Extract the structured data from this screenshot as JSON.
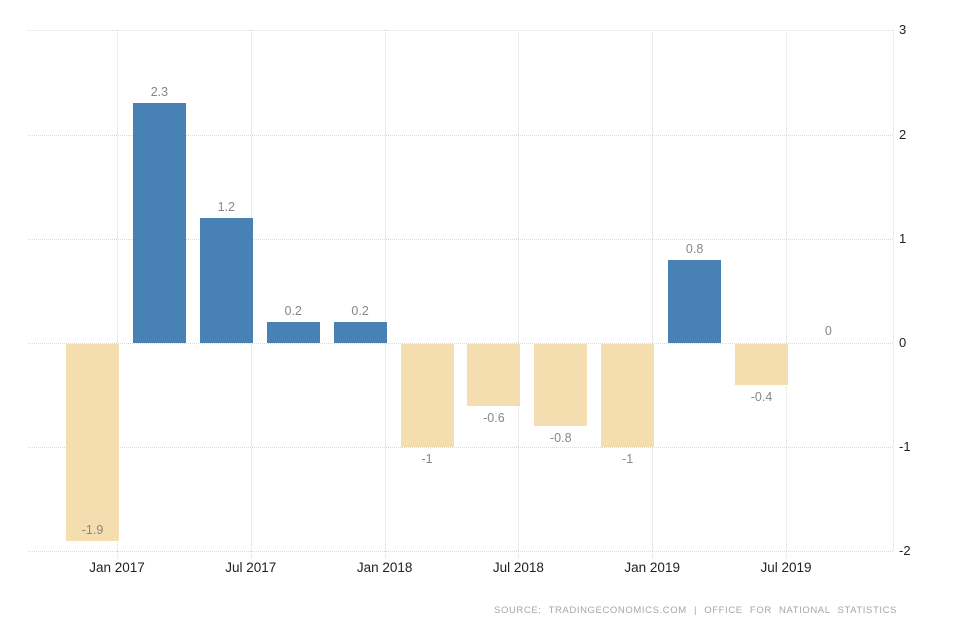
{
  "chart_data": {
    "type": "bar",
    "title": "",
    "xlabel": "",
    "ylabel": "",
    "values": [
      -1.9,
      2.3,
      1.2,
      0.2,
      0.2,
      -1,
      -0.6,
      -0.8,
      -1,
      0.8,
      -0.4,
      0
    ],
    "bar_labels": [
      "-1.9",
      "2.3",
      "1.2",
      "0.2",
      "0.2",
      "-1",
      "-0.6",
      "-0.8",
      "-1",
      "0.8",
      "-0.4",
      "0"
    ],
    "x_tick_labels": [
      "Jan 2017",
      "Jul 2017",
      "Jan 2018",
      "Jul 2018",
      "Jan 2019",
      "Jul 2019"
    ],
    "y_ticks": [
      3,
      2,
      1,
      0,
      -1,
      -2
    ],
    "y_tick_labels": [
      "3",
      "2",
      "1",
      "0",
      "-1",
      "-2"
    ],
    "ylim": [
      -2,
      3
    ],
    "grid": "dotted",
    "legend": "none",
    "colors": {
      "positive_bar": "#4881b4",
      "negative_bar": "#f4deb0",
      "gridline": "#d9d9d9",
      "axis_text": "#222222",
      "value_label": "#878787",
      "source_text": "#a6a6a6"
    }
  },
  "footer": {
    "source_text": "SOURCE: TRADINGECONOMICS.COM | OFFICE FOR NATIONAL STATISTICS"
  }
}
